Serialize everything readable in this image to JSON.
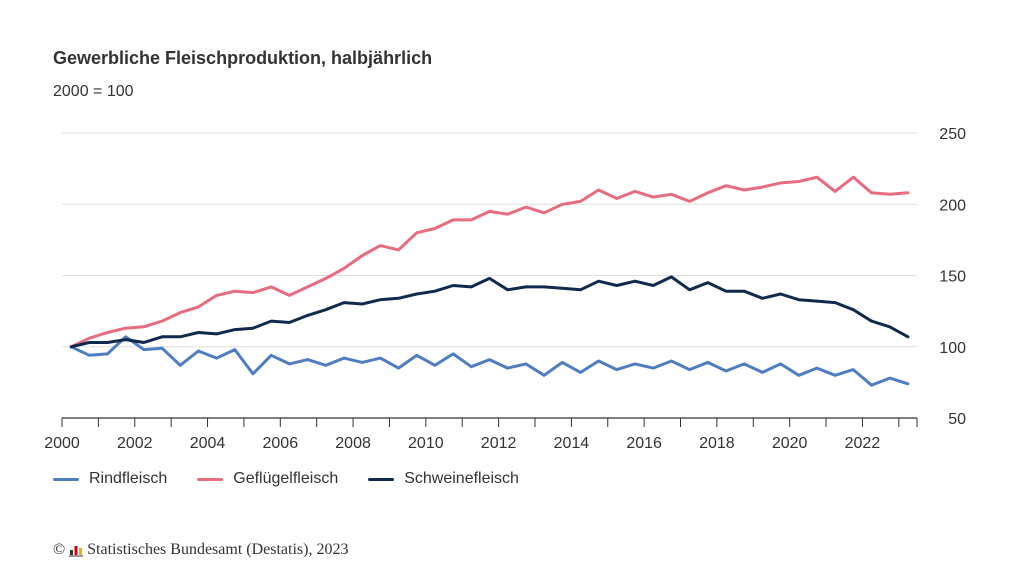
{
  "header": {
    "title": "Gewerbliche Fleischproduktion, halbjährlich",
    "subtitle": "2000 = 100"
  },
  "legend": [
    {
      "label": "Rindfleisch",
      "color": "#4e7dc1"
    },
    {
      "label": "Geflügelfleisch",
      "color": "#e86b7f"
    },
    {
      "label": "Schweinefleisch",
      "color": "#102a4e"
    }
  ],
  "source": {
    "copyright_symbol": "©",
    "text": "Statistisches Bundesamt (Destatis), 2023"
  },
  "chart_data": {
    "type": "line",
    "title": "Gewerbliche Fleischproduktion, halbjährlich",
    "subtitle": "2000 = 100",
    "xlabel": "",
    "ylabel": "",
    "ylim": [
      50,
      250
    ],
    "yticks": [
      50,
      100,
      150,
      200,
      250
    ],
    "y_axis_position": "right",
    "xlim": [
      2000,
      2023.5
    ],
    "xtick_labels": [
      "2000",
      "2002",
      "2004",
      "2006",
      "2008",
      "2010",
      "2012",
      "2014",
      "2016",
      "2018",
      "2020",
      "2022"
    ],
    "grid": "horizontal",
    "legend_position": "bottom-left",
    "x": [
      2000.25,
      2000.75,
      2001.25,
      2001.75,
      2002.25,
      2002.75,
      2003.25,
      2003.75,
      2004.25,
      2004.75,
      2005.25,
      2005.75,
      2006.25,
      2006.75,
      2007.25,
      2007.75,
      2008.25,
      2008.75,
      2009.25,
      2009.75,
      2010.25,
      2010.75,
      2011.25,
      2011.75,
      2012.25,
      2012.75,
      2013.25,
      2013.75,
      2014.25,
      2014.75,
      2015.25,
      2015.75,
      2016.25,
      2016.75,
      2017.25,
      2017.75,
      2018.25,
      2018.75,
      2019.25,
      2019.75,
      2020.25,
      2020.75,
      2021.25,
      2021.75,
      2022.25,
      2022.75,
      2023.25
    ],
    "series": [
      {
        "name": "Rindfleisch",
        "color": "#4e7dc1",
        "values": [
          100,
          94,
          95,
          107,
          98,
          99,
          87,
          97,
          92,
          98,
          81,
          94,
          88,
          91,
          87,
          92,
          89,
          92,
          85,
          94,
          87,
          95,
          86,
          91,
          85,
          88,
          80,
          89,
          82,
          90,
          84,
          88,
          85,
          90,
          84,
          89,
          83,
          88,
          82,
          88,
          80,
          85,
          80,
          84,
          73,
          78,
          74
        ]
      },
      {
        "name": "Geflügelfleisch",
        "color": "#e86b7f",
        "values": [
          100,
          106,
          110,
          113,
          114,
          118,
          124,
          128,
          136,
          139,
          138,
          142,
          136,
          142,
          148,
          155,
          164,
          171,
          168,
          180,
          183,
          189,
          189,
          195,
          193,
          198,
          194,
          200,
          202,
          210,
          204,
          209,
          205,
          207,
          202,
          208,
          213,
          210,
          212,
          215,
          216,
          219,
          209,
          219,
          208,
          207,
          208
        ]
      },
      {
        "name": "Schweinefleisch",
        "color": "#102a4e",
        "values": [
          100,
          103,
          103,
          105,
          103,
          107,
          107,
          110,
          109,
          112,
          113,
          118,
          117,
          122,
          126,
          131,
          130,
          133,
          134,
          137,
          139,
          143,
          142,
          148,
          140,
          142,
          142,
          141,
          140,
          146,
          143,
          146,
          143,
          149,
          140,
          145,
          139,
          139,
          134,
          137,
          133,
          132,
          131,
          126,
          118,
          114,
          107
        ]
      }
    ]
  }
}
